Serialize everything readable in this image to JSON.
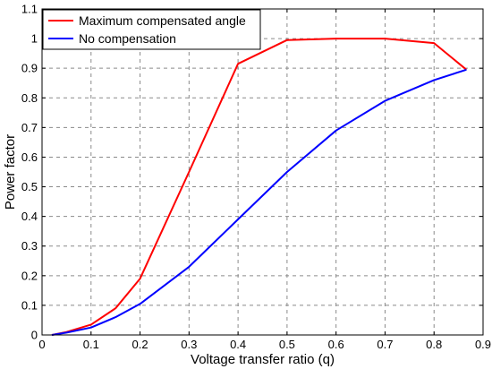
{
  "chart_data": {
    "type": "line",
    "title": "",
    "xlabel": "Voltage transfer ratio (q)",
    "ylabel": "Power factor",
    "xlim": [
      0,
      0.9
    ],
    "ylim": [
      0,
      1.1
    ],
    "xticks": [
      0,
      0.1,
      0.2,
      0.3,
      0.4,
      0.5,
      0.6,
      0.7,
      0.8,
      0.9
    ],
    "yticks": [
      0,
      0.1,
      0.2,
      0.3,
      0.4,
      0.5,
      0.6,
      0.7,
      0.8,
      0.9,
      1,
      1.1
    ],
    "grid": true,
    "legend_position": "top-left",
    "series": [
      {
        "name": "Maximum compensated angle",
        "color": "#ff0000",
        "x": [
          0.02,
          0.05,
          0.1,
          0.15,
          0.2,
          0.3,
          0.4,
          0.5,
          0.6,
          0.7,
          0.8,
          0.866
        ],
        "y": [
          0.0,
          0.01,
          0.035,
          0.09,
          0.19,
          0.55,
          0.915,
          0.995,
          1.0,
          1.0,
          0.985,
          0.895
        ]
      },
      {
        "name": "No compensation",
        "color": "#0000ff",
        "x": [
          0.02,
          0.05,
          0.1,
          0.15,
          0.2,
          0.3,
          0.4,
          0.5,
          0.6,
          0.7,
          0.8,
          0.866
        ],
        "y": [
          0.0,
          0.008,
          0.025,
          0.06,
          0.105,
          0.23,
          0.39,
          0.55,
          0.69,
          0.79,
          0.86,
          0.895
        ]
      }
    ]
  }
}
